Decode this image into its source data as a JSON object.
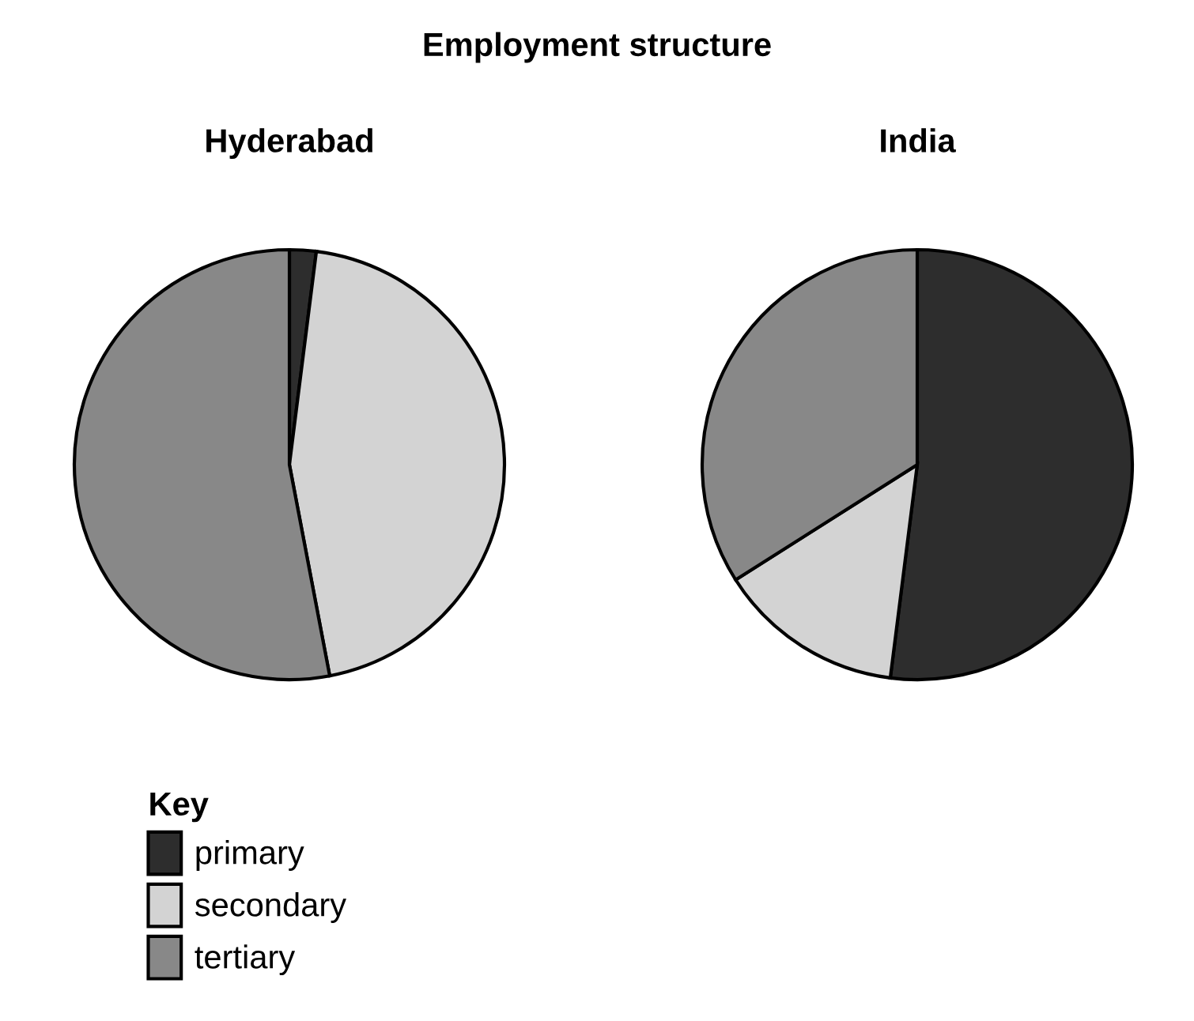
{
  "chart_data": [
    {
      "type": "pie",
      "title": "Hyderabad",
      "categories": [
        "primary",
        "secondary",
        "tertiary"
      ],
      "values": [
        2,
        45,
        53
      ],
      "colors": [
        "#2d2d2d",
        "#d3d3d3",
        "#888888"
      ],
      "legend": "bottom left",
      "legend_title": "Key",
      "annotations": [
        "Employment structure"
      ]
    },
    {
      "type": "pie",
      "title": "India",
      "categories": [
        null,
        null,
        null
      ],
      "values": [
        52,
        14,
        34
      ],
      "colors": [
        "#2d2d2d",
        "#d3d3d3",
        "#888888"
      ]
    }
  ]
}
